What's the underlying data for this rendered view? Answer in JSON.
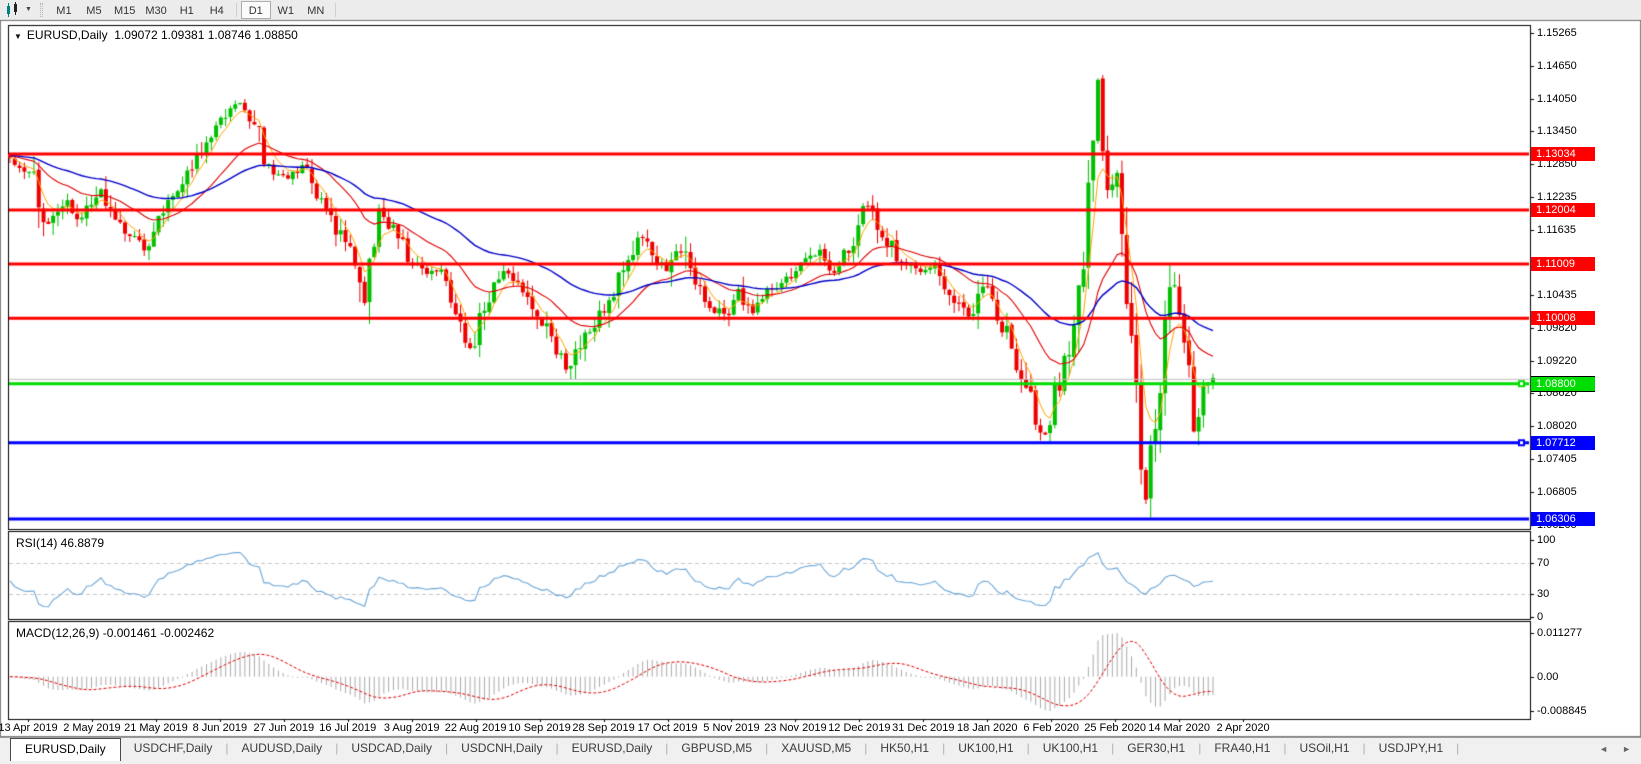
{
  "toolbar": {
    "timeframes": [
      "M1",
      "M5",
      "M15",
      "M30",
      "H1",
      "H4",
      "D1",
      "W1",
      "MN"
    ],
    "active_timeframe": "D1"
  },
  "icons": {
    "chart_tool": "candlestick-chart-icon",
    "caret": "▼",
    "collapse": "▼",
    "scroll_left": "◄",
    "scroll_right": "►"
  },
  "chart": {
    "symbol_title": "EURUSD,Daily",
    "ohlc_values": "1.09072 1.09381 1.08746 1.08850",
    "price_axis_labels": [
      "1.15265",
      "1.14650",
      "1.14050",
      "1.13450",
      "1.12850",
      "1.12235",
      "1.11635",
      "1.10435",
      "1.09820",
      "1.09220",
      "1.08620",
      "1.08020",
      "1.07405",
      "1.06805",
      "1.06205"
    ],
    "hlines": [
      {
        "label": "1.13034",
        "price": 1.13034,
        "color": "#FF0000",
        "thickness": 3,
        "badge": true,
        "handle": false,
        "bordered": false
      },
      {
        "label": "1.12004",
        "price": 1.12004,
        "color": "#FF0000",
        "thickness": 3,
        "badge": true,
        "handle": false,
        "bordered": false
      },
      {
        "label": "1.11009",
        "price": 1.11009,
        "color": "#FF0000",
        "thickness": 3,
        "badge": true,
        "handle": false,
        "bordered": false
      },
      {
        "label": "1.10008",
        "price": 1.10008,
        "color": "#FF0000",
        "thickness": 3,
        "badge": true,
        "handle": false,
        "bordered": false
      },
      {
        "label": "",
        "price": 1.0888,
        "color": "#C0C0C0",
        "thickness": 1,
        "badge": false,
        "handle": false,
        "bordered": false
      },
      {
        "label": "1.08800",
        "price": 1.088,
        "color": "#00DD00",
        "thickness": 3,
        "badge": true,
        "handle": true,
        "bordered": true
      },
      {
        "label": "1.07712",
        "price": 1.07712,
        "color": "#0000FF",
        "thickness": 3,
        "badge": true,
        "handle": true,
        "bordered": false
      },
      {
        "label": "1.06306",
        "price": 1.06306,
        "color": "#0000FF",
        "thickness": 3,
        "badge": true,
        "handle": false,
        "bordered": false
      }
    ],
    "colors": {
      "bull": "#00C000",
      "bear": "#EE0000",
      "ma_fast": "#FFA500",
      "ma_mid": "#E00000",
      "ma_slow": "#0000C8",
      "panel_border": "#000000",
      "window_border": "#808080",
      "background": "#FFFFFF"
    }
  },
  "rsi_panel": {
    "label": "RSI(14) 46.8879",
    "period": 14,
    "current_value": 46.8879,
    "axis_labels": [
      "100",
      "70",
      "30",
      "0"
    ],
    "overbought_level": 70,
    "oversold_level": 30,
    "line_color": "#6FA8D8",
    "level_color": "#C8C8C8"
  },
  "macd_panel": {
    "label": "MACD(12,26,9) -0.001461 -0.002462",
    "main_value": -0.001461,
    "signal_value": -0.002462,
    "axis_labels": [
      "0.011277",
      "0.00",
      "-0.008845"
    ],
    "axis_values": [
      0.011277,
      0.0,
      -0.008845
    ],
    "histogram_color": "#ABABAB",
    "signal_color": "#E00000"
  },
  "date_axis": {
    "labels": [
      "13 Apr 2019",
      "2 May 2019",
      "21 May 2019",
      "8 Jun 2019",
      "27 Jun 2019",
      "16 Jul 2019",
      "3 Aug 2019",
      "22 Aug 2019",
      "10 Sep 2019",
      "28 Sep 2019",
      "17 Oct 2019",
      "5 Nov 2019",
      "23 Nov 2019",
      "12 Dec 2019",
      "31 Dec 2019",
      "18 Jan 2020",
      "6 Feb 2020",
      "25 Feb 2020",
      "14 Mar 2020",
      "2 Apr 2020"
    ]
  },
  "tab_bar": {
    "tabs": [
      "EURUSD,Daily",
      "USDCHF,Daily",
      "AUDUSD,Daily",
      "USDCAD,Daily",
      "USDCNH,Daily",
      "EURUSD,Daily",
      "GBPUSD,M5",
      "XAUUSD,M5",
      "HK50,H1",
      "UK100,H1",
      "UK100,H1",
      "GER30,H1",
      "FRA40,H1",
      "USOil,H1",
      "USDJPY,H1"
    ],
    "active_index": 0
  },
  "chart_data": {
    "type": "candlestick",
    "symbol": "EURUSD",
    "timeframe": "Daily",
    "visible_range": {
      "start": "13 Apr 2019",
      "end": "2 Apr 2020",
      "price_min": 1.06205,
      "price_max": 1.15265
    },
    "key_levels": [
      1.13034,
      1.12004,
      1.11009,
      1.10008,
      1.088,
      1.07712,
      1.06306
    ],
    "candle_count": 252,
    "price_path_anchors": [
      [
        0.0,
        1.13
      ],
      [
        0.019,
        1.126
      ],
      [
        0.03,
        1.116
      ],
      [
        0.045,
        1.122
      ],
      [
        0.06,
        1.118
      ],
      [
        0.075,
        1.124
      ],
      [
        0.093,
        1.116
      ],
      [
        0.112,
        1.113
      ],
      [
        0.127,
        1.119
      ],
      [
        0.142,
        1.125
      ],
      [
        0.16,
        1.132
      ],
      [
        0.179,
        1.137
      ],
      [
        0.19,
        1.14
      ],
      [
        0.205,
        1.135
      ],
      [
        0.216,
        1.127
      ],
      [
        0.231,
        1.126
      ],
      [
        0.246,
        1.128
      ],
      [
        0.261,
        1.121
      ],
      [
        0.276,
        1.115
      ],
      [
        0.287,
        1.111
      ],
      [
        0.295,
        1.104
      ],
      [
        0.306,
        1.121
      ],
      [
        0.317,
        1.117
      ],
      [
        0.332,
        1.111
      ],
      [
        0.347,
        1.109
      ],
      [
        0.358,
        1.108
      ],
      [
        0.373,
        1.1
      ],
      [
        0.384,
        1.0935
      ],
      [
        0.396,
        1.103
      ],
      [
        0.41,
        1.108
      ],
      [
        0.422,
        1.107
      ],
      [
        0.433,
        1.103
      ],
      [
        0.448,
        1.097
      ],
      [
        0.463,
        1.09
      ],
      [
        0.478,
        1.097
      ],
      [
        0.493,
        1.101
      ],
      [
        0.507,
        1.108
      ],
      [
        0.522,
        1.115
      ],
      [
        0.534,
        1.112
      ],
      [
        0.545,
        1.108
      ],
      [
        0.556,
        1.114
      ],
      [
        0.567,
        1.107
      ],
      [
        0.582,
        1.103
      ],
      [
        0.593,
        1.1
      ],
      [
        0.604,
        1.106
      ],
      [
        0.616,
        1.101
      ],
      [
        0.627,
        1.104
      ],
      [
        0.642,
        1.107
      ],
      [
        0.657,
        1.11
      ],
      [
        0.672,
        1.113
      ],
      [
        0.687,
        1.108
      ],
      [
        0.701,
        1.115
      ],
      [
        0.713,
        1.121
      ],
      [
        0.724,
        1.116
      ],
      [
        0.739,
        1.111
      ],
      [
        0.754,
        1.109
      ],
      [
        0.769,
        1.109
      ],
      [
        0.784,
        1.103
      ],
      [
        0.799,
        1.1
      ],
      [
        0.81,
        1.108
      ],
      [
        0.825,
        1.099
      ],
      [
        0.839,
        1.091
      ],
      [
        0.854,
        1.081
      ],
      [
        0.862,
        1.0785
      ],
      [
        0.869,
        1.086
      ],
      [
        0.881,
        1.095
      ],
      [
        0.892,
        1.108
      ],
      [
        0.899,
        1.13
      ],
      [
        0.903,
        1.147
      ],
      [
        0.91,
        1.13
      ],
      [
        0.914,
        1.117
      ],
      [
        0.918,
        1.132
      ],
      [
        0.925,
        1.112
      ],
      [
        0.933,
        1.095
      ],
      [
        0.94,
        1.075
      ],
      [
        0.944,
        1.066
      ],
      [
        0.951,
        1.079
      ],
      [
        0.959,
        1.095
      ],
      [
        0.966,
        1.109
      ],
      [
        0.974,
        1.099
      ],
      [
        0.981,
        1.088
      ],
      [
        0.985,
        1.079
      ],
      [
        0.992,
        1.086
      ],
      [
        1.0,
        1.0885
      ]
    ]
  }
}
